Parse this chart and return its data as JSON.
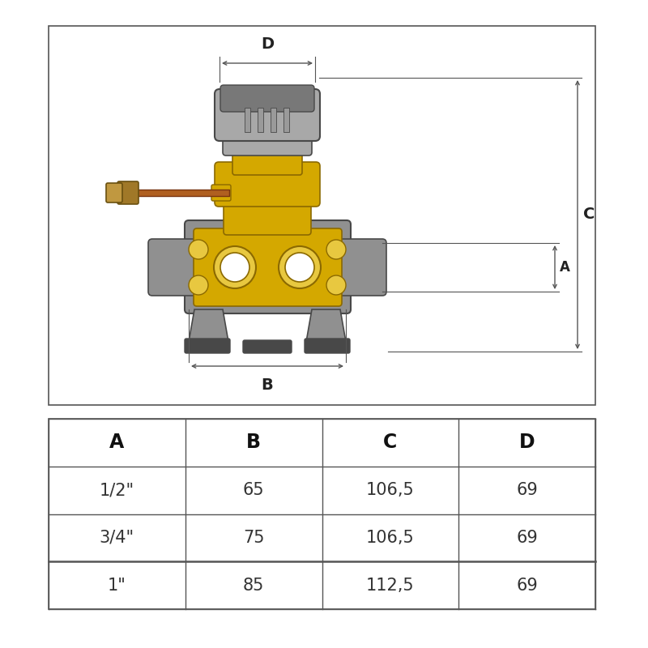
{
  "bg_color": "#ffffff",
  "table_headers": [
    "A",
    "B",
    "C",
    "D"
  ],
  "table_rows": [
    [
      "1/2\"",
      "65",
      "106,5",
      "69"
    ],
    [
      "3/4\"",
      "75",
      "106,5",
      "69"
    ],
    [
      "1\"",
      "85",
      "112,5",
      "69"
    ]
  ],
  "dim_color": "#555555",
  "yellow": "#D4A800",
  "yellow_mid": "#C49800",
  "yellow_dark": "#8B6900",
  "yellow_light": "#E8C840",
  "gray": "#787878",
  "gray_mid": "#909090",
  "gray_light": "#b0b0b0",
  "gray_dark": "#484848",
  "gray_cap": "#a8a8a8",
  "copper": "#B06020",
  "brass": "#A07828",
  "white": "#ffffff",
  "black": "#222222",
  "outline": "#444444"
}
